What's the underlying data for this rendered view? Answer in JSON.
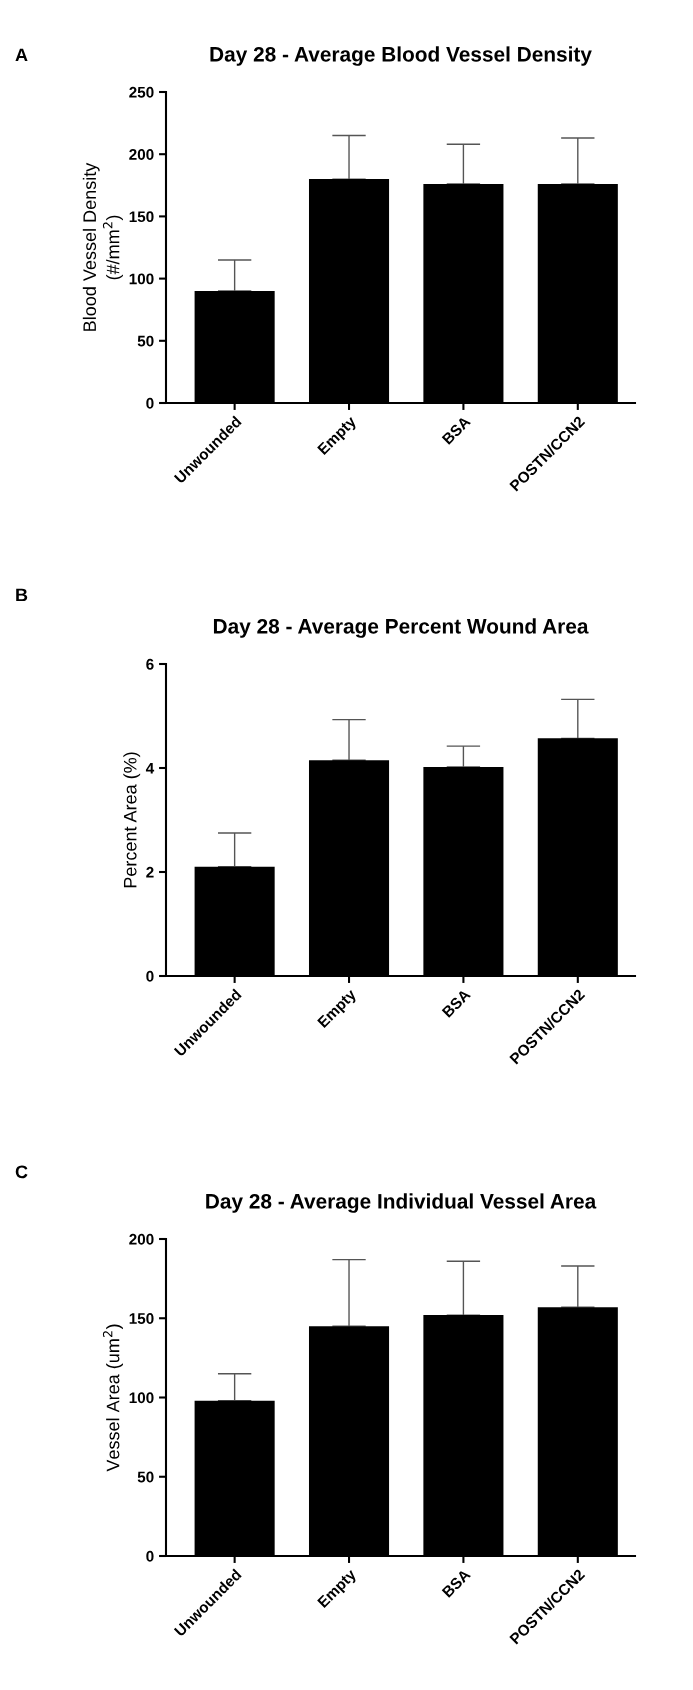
{
  "chart_data": [
    {
      "type": "bar",
      "title": "Day 28 - Average Blood Vessel Density",
      "ylabel": "Blood Vessel Density\n(#/mm$^{2}$)",
      "annotations": [
        "A"
      ],
      "categories": [
        "Unwounded",
        "Empty",
        "BSA",
        "POSTN/CCN2"
      ],
      "values": [
        90,
        180,
        176,
        176
      ],
      "color": "#000000",
      "errors": [
        [
          90,
          115
        ],
        [
          180,
          215
        ],
        [
          176,
          208
        ],
        [
          176,
          213
        ]
      ],
      "ylim": [
        0,
        250
      ],
      "yticks": [
        0,
        50,
        100,
        150,
        200,
        250
      ],
      "grid": false
    },
    {
      "type": "bar",
      "title": "Day 28 - Average Percent Wound Area",
      "ylabel": "Percent Area (%)",
      "annotations": [
        "B"
      ],
      "categories": [
        "Unwounded",
        "Empty",
        "BSA",
        "POSTN/CCN2"
      ],
      "values": [
        2.1,
        4.15,
        4.02,
        4.57
      ],
      "color": "#000000",
      "errors": [
        [
          2.1,
          2.75
        ],
        [
          4.15,
          4.93
        ],
        [
          4.02,
          4.42
        ],
        [
          4.57,
          5.32
        ]
      ],
      "ylim": [
        0,
        6
      ],
      "yticks": [
        0,
        2,
        4,
        6
      ],
      "grid": false
    },
    {
      "type": "bar",
      "title": "Day 28 - Average Individual Vessel Area",
      "ylabel": "Vessel Area (um$^{2}$)",
      "annotations": [
        "C"
      ],
      "categories": [
        "Unwounded",
        "Empty",
        "BSA",
        "POSTN/CCN2"
      ],
      "values": [
        98,
        145,
        152,
        157
      ],
      "color": "#000000",
      "errors": [
        [
          98,
          115
        ],
        [
          145,
          187
        ],
        [
          152,
          186
        ],
        [
          157,
          183
        ]
      ],
      "ylim": [
        0,
        200
      ],
      "yticks": [
        0,
        50,
        100,
        150,
        200
      ],
      "grid": false
    }
  ]
}
